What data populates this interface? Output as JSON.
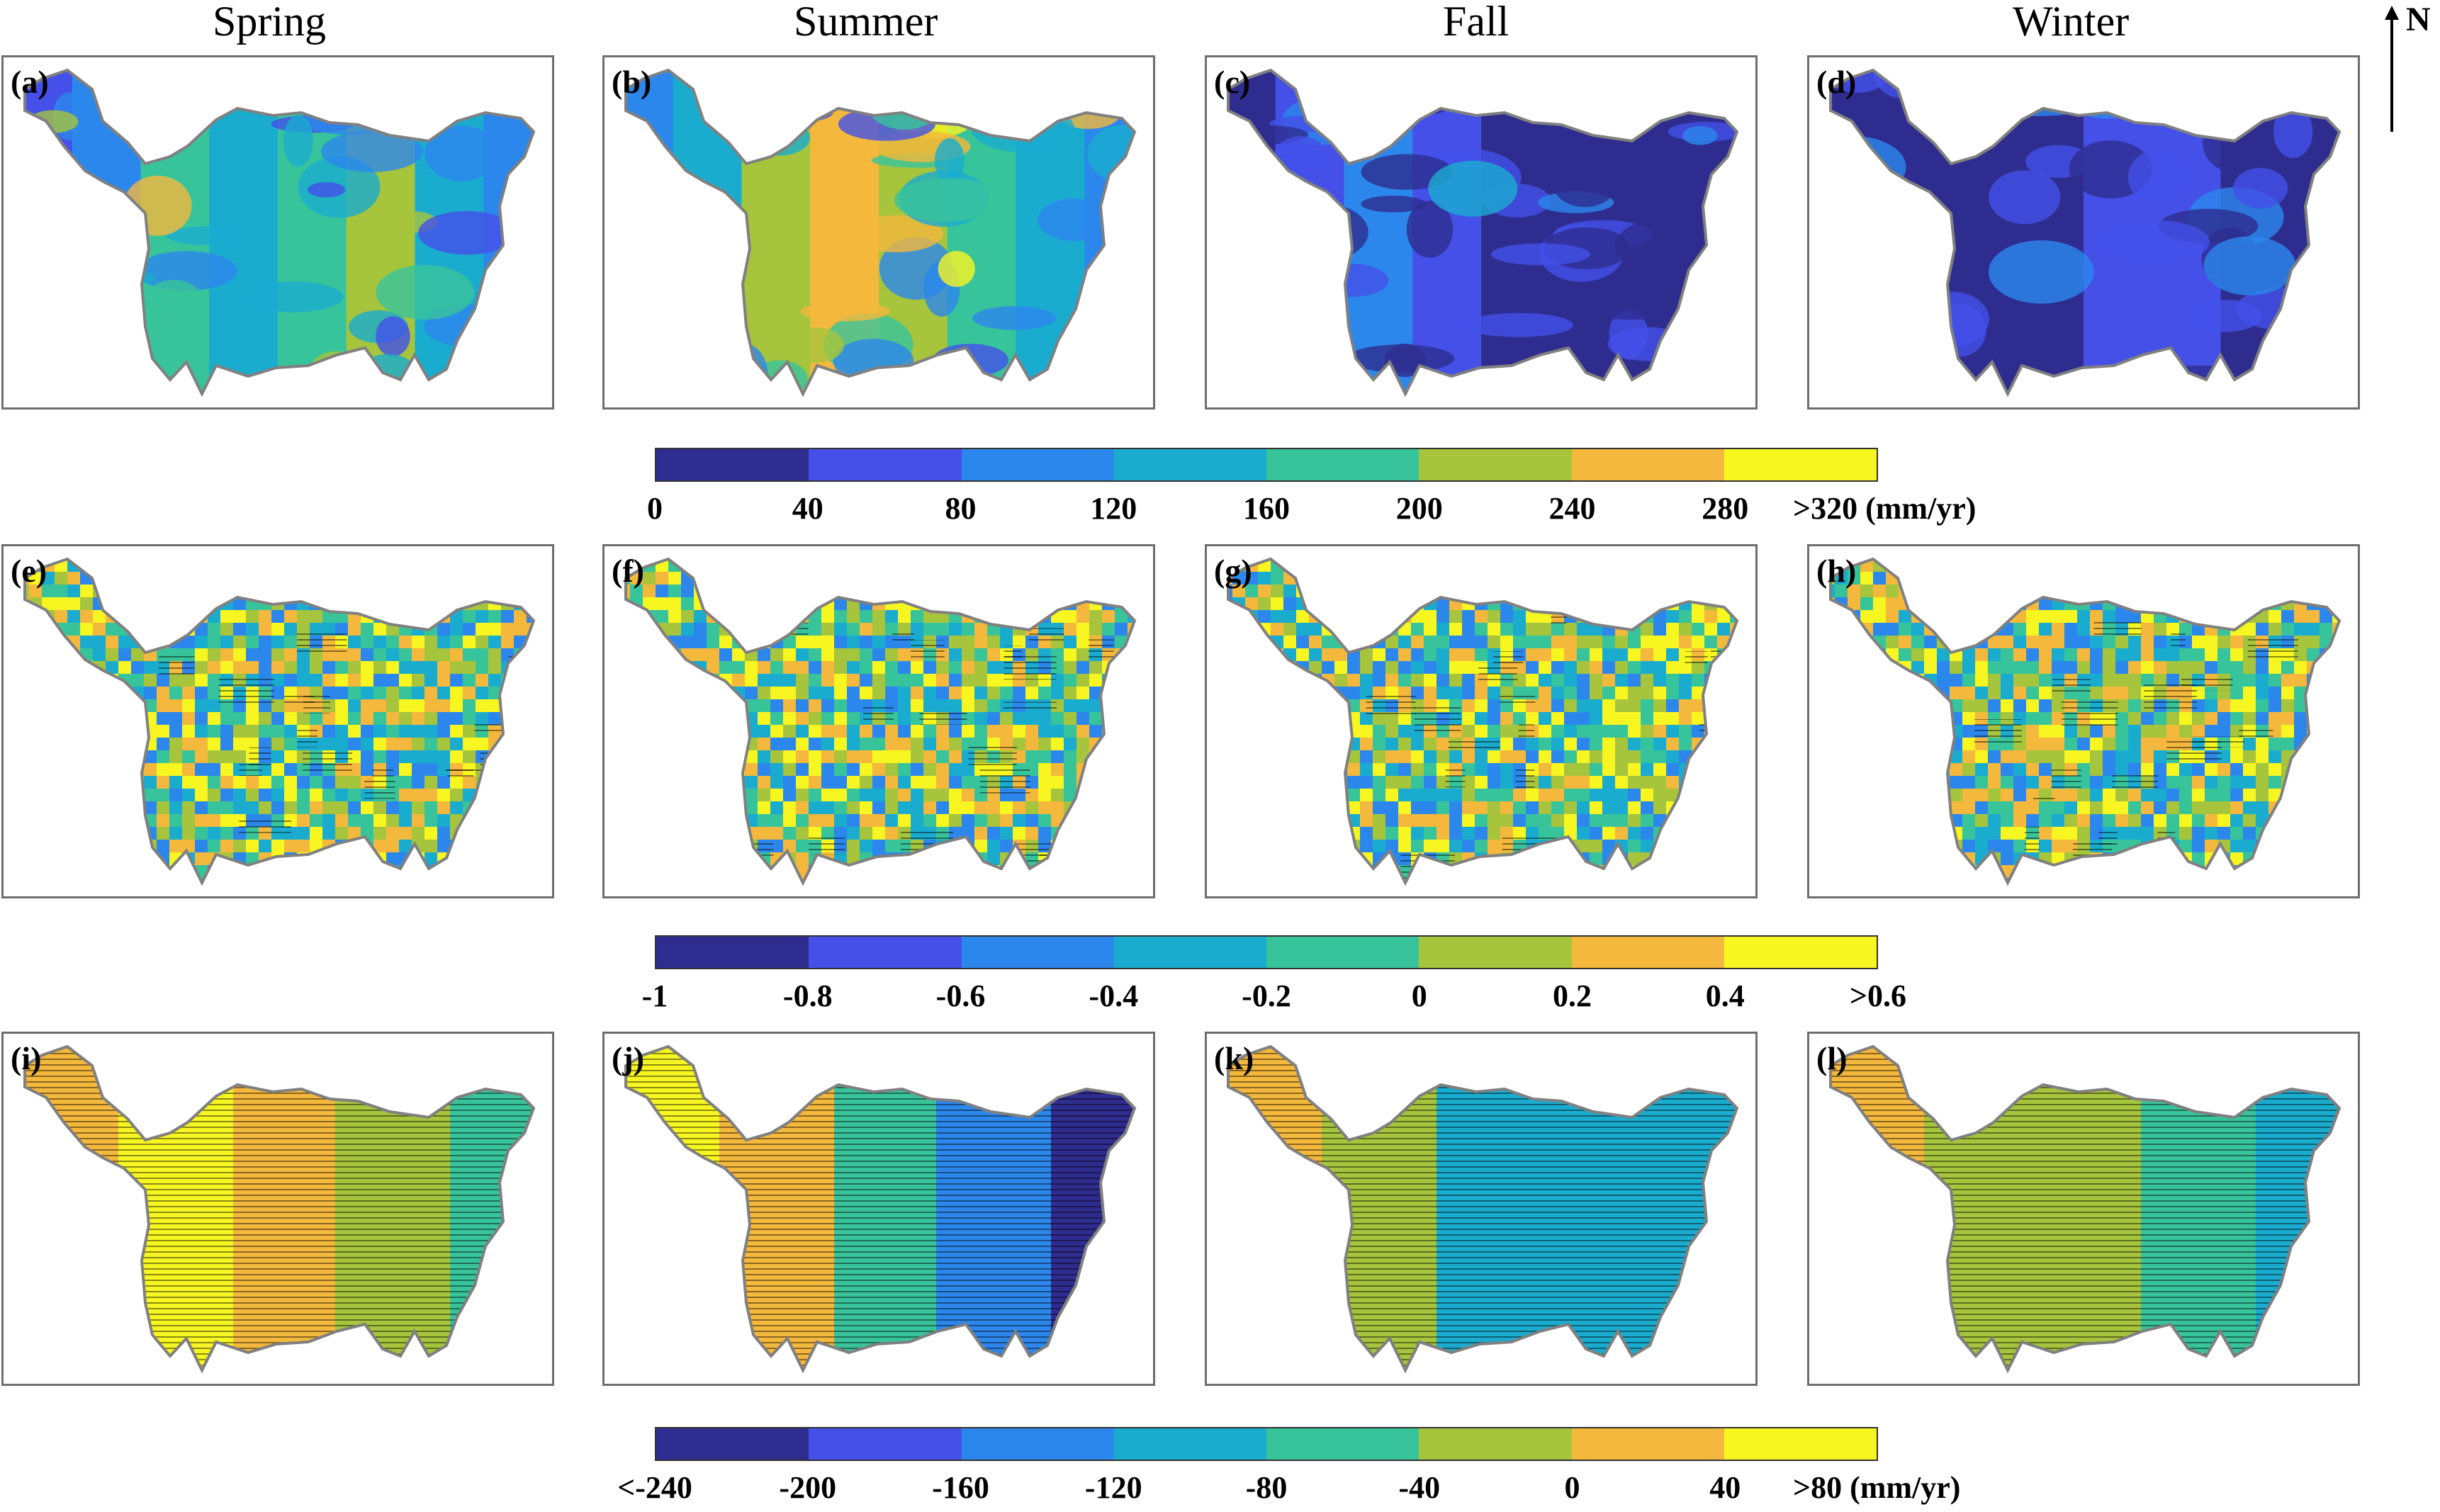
{
  "seasons": [
    "Spring",
    "Summer",
    "Fall",
    "Winter"
  ],
  "north_label": "N",
  "panel_labels": [
    "(a)",
    "(b)",
    "(c)",
    "(d)",
    "(e)",
    "(f)",
    "(g)",
    "(h)",
    "(i)",
    "(j)",
    "(k)",
    "(l)"
  ],
  "colormap": [
    "#2e2d8f",
    "#4450e8",
    "#2c87ec",
    "#1aaccf",
    "#38c49b",
    "#a6c43c",
    "#f4b83c",
    "#f7f621"
  ],
  "map_mean_class": [
    [
      1,
      2,
      4,
      3,
      4,
      5,
      3,
      2
    ],
    [
      2,
      3,
      5,
      6,
      5,
      4,
      3,
      2
    ],
    [
      0,
      1,
      2,
      1,
      0,
      0,
      0,
      0
    ],
    [
      0,
      0,
      0,
      0,
      1,
      1,
      0,
      0
    ]
  ],
  "colorbars": [
    {
      "ticks": [
        "0",
        "40",
        "80",
        "120",
        "160",
        "200",
        "240",
        "280",
        ">320 (mm/yr)"
      ]
    },
    {
      "ticks": [
        "-1",
        "-0.8",
        "-0.6",
        "-0.4",
        "-0.2",
        "0",
        "0.2",
        "0.4",
        ">0.6"
      ]
    },
    {
      "ticks": [
        "<-240",
        "-200",
        "-160",
        "-120",
        "-80",
        "-40",
        "0",
        "40",
        ">80 (mm/yr)"
      ]
    }
  ]
}
